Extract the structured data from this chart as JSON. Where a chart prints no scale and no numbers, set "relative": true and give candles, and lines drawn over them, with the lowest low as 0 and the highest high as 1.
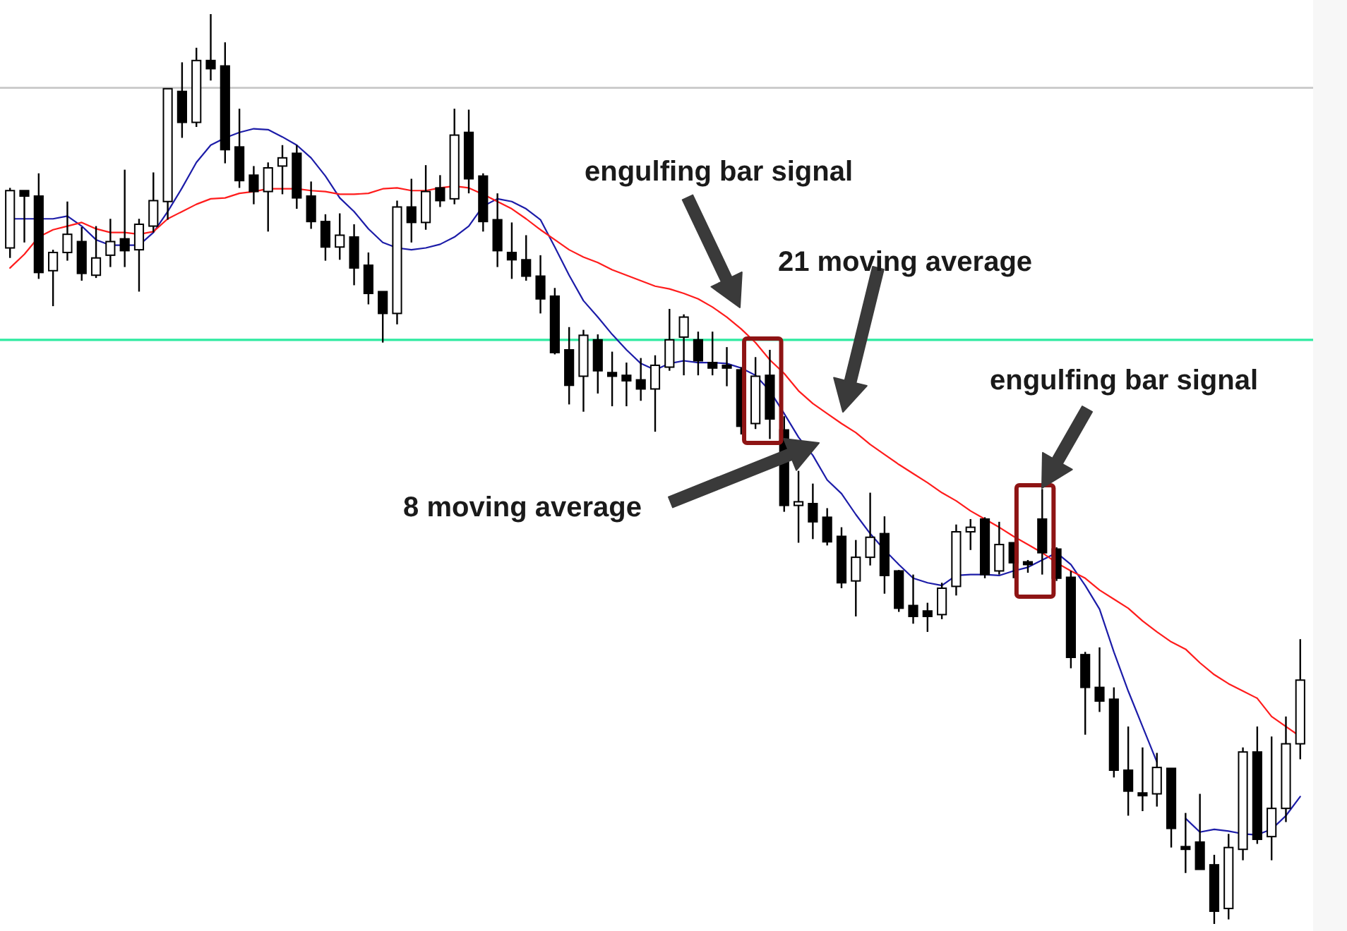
{
  "chart_data": {
    "type": "candlestick",
    "relative": true,
    "categories": [
      null,
      null,
      null,
      null,
      null,
      null,
      null,
      null,
      null,
      null,
      null,
      null,
      null,
      null,
      null,
      null,
      null,
      null,
      null,
      null,
      null,
      null,
      null,
      null,
      null,
      null,
      null,
      null,
      null,
      null,
      null,
      null,
      null,
      null,
      null,
      null,
      null,
      null,
      null,
      null,
      null,
      null,
      null,
      null,
      null,
      null,
      null,
      null,
      null,
      null,
      null,
      null,
      null,
      null,
      null,
      null,
      null,
      null,
      null,
      null,
      null,
      null,
      null,
      null,
      null,
      null,
      null,
      null,
      null,
      null,
      null,
      null,
      null,
      null,
      null,
      null,
      null,
      null,
      null,
      null,
      null,
      null,
      null,
      null,
      null,
      null,
      null,
      null,
      null,
      null,
      null
    ],
    "ohlc": [
      [
        0.743,
        0.809,
        0.732,
        0.806
      ],
      [
        0.806,
        0.806,
        0.749,
        0.8
      ],
      [
        0.8,
        0.825,
        0.709,
        0.716
      ],
      [
        0.718,
        0.741,
        0.679,
        0.738
      ],
      [
        0.738,
        0.794,
        0.729,
        0.758
      ],
      [
        0.75,
        0.766,
        0.707,
        0.715
      ],
      [
        0.713,
        0.767,
        0.71,
        0.732
      ],
      [
        0.735,
        0.775,
        0.722,
        0.75
      ],
      [
        0.753,
        0.829,
        0.722,
        0.74
      ],
      [
        0.741,
        0.775,
        0.695,
        0.769
      ],
      [
        0.767,
        0.826,
        0.76,
        0.795
      ],
      [
        0.794,
        0.918,
        0.774,
        0.918
      ],
      [
        0.915,
        0.947,
        0.864,
        0.881
      ],
      [
        0.881,
        0.963,
        0.876,
        0.949
      ],
      [
        0.949,
        1,
        0.927,
        0.94
      ],
      [
        0.943,
        0.969,
        0.836,
        0.851
      ],
      [
        0.854,
        0.896,
        0.809,
        0.817
      ],
      [
        0.823,
        0.833,
        0.791,
        0.805
      ],
      [
        0.805,
        0.837,
        0.761,
        0.831
      ],
      [
        0.833,
        0.856,
        0.802,
        0.842
      ],
      [
        0.847,
        0.856,
        0.786,
        0.798
      ],
      [
        0.8,
        0.816,
        0.764,
        0.772
      ],
      [
        0.772,
        0.78,
        0.729,
        0.744
      ],
      [
        0.744,
        0.781,
        0.73,
        0.757
      ],
      [
        0.755,
        0.769,
        0.702,
        0.721
      ],
      [
        0.724,
        0.738,
        0.681,
        0.693
      ],
      [
        0.695,
        0.695,
        0.639,
        0.671
      ],
      [
        0.671,
        0.795,
        0.659,
        0.788
      ],
      [
        0.788,
        0.819,
        0.749,
        0.771
      ],
      [
        0.771,
        0.834,
        0.763,
        0.805
      ],
      [
        0.809,
        0.823,
        0.788,
        0.795
      ],
      [
        0.797,
        0.896,
        0.791,
        0.867
      ],
      [
        0.87,
        0.895,
        0.803,
        0.819
      ],
      [
        0.822,
        0.825,
        0.761,
        0.772
      ],
      [
        0.774,
        0.803,
        0.722,
        0.74
      ],
      [
        0.738,
        0.771,
        0.709,
        0.73
      ],
      [
        0.73,
        0.757,
        0.707,
        0.712
      ],
      [
        0.712,
        0.735,
        0.671,
        0.687
      ],
      [
        0.69,
        0.699,
        0.626,
        0.628
      ],
      [
        0.631,
        0.656,
        0.571,
        0.592
      ],
      [
        0.602,
        0.653,
        0.563,
        0.647
      ],
      [
        0.642,
        0.648,
        0.583,
        0.608
      ],
      [
        0.606,
        0.629,
        0.569,
        0.602
      ],
      [
        0.603,
        0.617,
        0.569,
        0.597
      ],
      [
        0.598,
        0.622,
        0.575,
        0.588
      ],
      [
        0.588,
        0.625,
        0.541,
        0.614
      ],
      [
        0.612,
        0.676,
        0.608,
        0.642
      ],
      [
        0.645,
        0.67,
        0.603,
        0.667
      ],
      [
        0.642,
        0.651,
        0.603,
        0.619
      ],
      [
        0.617,
        0.651,
        0.603,
        0.611
      ],
      [
        0.614,
        0.634,
        0.591,
        0.611
      ],
      [
        0.609,
        0.612,
        0.538,
        0.547
      ],
      [
        0.55,
        0.623,
        0.544,
        0.602
      ],
      [
        0.603,
        0.631,
        0.533,
        0.555
      ],
      [
        0.543,
        0.558,
        0.453,
        0.46
      ],
      [
        0.46,
        0.498,
        0.419,
        0.464
      ],
      [
        0.462,
        0.484,
        0.423,
        0.442
      ],
      [
        0.447,
        0.457,
        0.416,
        0.42
      ],
      [
        0.426,
        0.436,
        0.369,
        0.375
      ],
      [
        0.377,
        0.422,
        0.338,
        0.403
      ],
      [
        0.403,
        0.474,
        0.394,
        0.425
      ],
      [
        0.429,
        0.448,
        0.363,
        0.383
      ],
      [
        0.388,
        0.389,
        0.343,
        0.347
      ],
      [
        0.35,
        0.384,
        0.33,
        0.338
      ],
      [
        0.344,
        0.353,
        0.321,
        0.338
      ],
      [
        0.34,
        0.375,
        0.335,
        0.369
      ],
      [
        0.371,
        0.439,
        0.361,
        0.431
      ],
      [
        0.431,
        0.445,
        0.411,
        0.436
      ],
      [
        0.445,
        0.447,
        0.38,
        0.384
      ],
      [
        0.388,
        0.442,
        0.384,
        0.417
      ],
      [
        0.419,
        0.419,
        0.38,
        0.397
      ],
      [
        0.398,
        0.4,
        0.386,
        0.395
      ],
      [
        0.445,
        0.478,
        0.384,
        0.408
      ],
      [
        0.412,
        0.414,
        0.377,
        0.38
      ],
      [
        0.381,
        0.388,
        0.281,
        0.293
      ],
      [
        0.296,
        0.299,
        0.208,
        0.26
      ],
      [
        0.26,
        0.304,
        0.233,
        0.245
      ],
      [
        0.247,
        0.26,
        0.161,
        0.169
      ],
      [
        0.169,
        0.217,
        0.119,
        0.146
      ],
      [
        0.144,
        0.194,
        0.124,
        0.141
      ],
      [
        0.143,
        0.188,
        0.129,
        0.172
      ],
      [
        0.171,
        0.171,
        0.084,
        0.105
      ],
      [
        0.085,
        0.122,
        0.056,
        0.082
      ],
      [
        0.09,
        0.143,
        0.06,
        0.06
      ],
      [
        0.065,
        0.076,
        0,
        0.014
      ],
      [
        0.017,
        0.099,
        0.005,
        0.084
      ],
      [
        0.082,
        0.194,
        0.07,
        0.189
      ],
      [
        0.189,
        0.217,
        0.088,
        0.093
      ],
      [
        0.096,
        0.206,
        0.07,
        0.127
      ],
      [
        0.127,
        0.228,
        0.112,
        0.198
      ],
      [
        0.198,
        0.313,
        0.181,
        0.268
      ]
    ],
    "series": [
      {
        "type": "line",
        "color": "#1c1ca8",
        "values": [
          0.775,
          0.775,
          0.775,
          0.775,
          0.778,
          0.767,
          0.752,
          0.746,
          0.746,
          0.746,
          0.76,
          0.783,
          0.809,
          0.837,
          0.856,
          0.864,
          0.87,
          0.874,
          0.873,
          0.865,
          0.856,
          0.842,
          0.822,
          0.798,
          0.783,
          0.764,
          0.749,
          0.743,
          0.741,
          0.743,
          0.747,
          0.755,
          0.767,
          0.789,
          0.797,
          0.794,
          0.786,
          0.774,
          0.744,
          0.713,
          0.685,
          0.667,
          0.648,
          0.631,
          0.616,
          0.609,
          0.616,
          0.619,
          0.617,
          0.617,
          0.616,
          0.611,
          0.603,
          0.586,
          0.561,
          0.535,
          0.515,
          0.488,
          0.473,
          0.45,
          0.429,
          0.411,
          0.395,
          0.38,
          0.375,
          0.372,
          0.383,
          0.384,
          0.384,
          0.383,
          0.388,
          0.392,
          0.4,
          0.408,
          0.395,
          0.372,
          0.346,
          0.299,
          0.256,
          0.217,
          0.178,
          null,
          0.116,
          0.101,
          0.104,
          0.102,
          0.099,
          0.098,
          0.104,
          0.119,
          0.14
        ]
      },
      {
        "type": "line",
        "color": "#ff1c1c",
        "values": [
          0.721,
          0.736,
          0.755,
          0.763,
          0.767,
          0.771,
          0.764,
          0.76,
          0.76,
          0.758,
          0.761,
          0.775,
          0.783,
          0.791,
          0.797,
          0.798,
          0.803,
          0.805,
          0.808,
          0.808,
          0.808,
          0.806,
          0.805,
          0.802,
          0.802,
          0.803,
          0.808,
          0.809,
          0.806,
          0.806,
          0.809,
          0.811,
          0.809,
          0.802,
          0.794,
          0.786,
          0.775,
          0.763,
          0.752,
          0.741,
          0.733,
          0.727,
          0.719,
          0.713,
          0.707,
          0.701,
          0.698,
          0.693,
          0.687,
          0.678,
          0.667,
          0.654,
          0.639,
          0.62,
          0.605,
          0.586,
          0.572,
          0.561,
          0.55,
          0.54,
          0.527,
          0.516,
          0.505,
          0.495,
          0.485,
          0.474,
          0.465,
          0.454,
          0.445,
          0.436,
          0.426,
          0.417,
          0.408,
          0.397,
          0.388,
          0.38,
          0.367,
          0.357,
          0.347,
          0.333,
          0.321,
          0.31,
          0.302,
          0.287,
          0.274,
          0.264,
          0.256,
          0.248,
          0.228,
          0.217,
          0.206
        ]
      }
    ],
    "ref_lines": [
      {
        "axis": "y",
        "value": 0.919,
        "color": "#cccccc"
      },
      {
        "axis": "y",
        "value": 0.642,
        "color": "#2eeaa0"
      }
    ],
    "annotations": [
      "engulfing bar signal",
      "21 moving average",
      "engulfing bar signal",
      "8 moving average"
    ]
  }
}
